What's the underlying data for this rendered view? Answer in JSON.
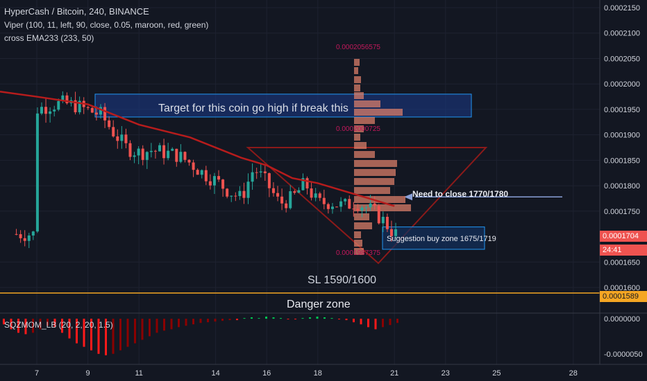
{
  "header": {
    "symbol_line": "HyperCash / Bitcoin, 240, BINANCE",
    "indicator_1": "Viper (100, 11, left, 90, close, 0.05, maroon, red, green)",
    "indicator_2": "cross EMA233 (233, 50)"
  },
  "annotations": {
    "target": "Target for this coin go high if break this",
    "need_close": "Need to close 1770/1780",
    "buy_zone": "Suggestion buy zone 1675/1719",
    "sl": "SL 1590/1600",
    "danger": "Danger zone"
  },
  "price_axis": {
    "ticks": [
      "0.0002150",
      "0.0002100",
      "0.0002050",
      "0.0002000",
      "0.0001950",
      "0.0001900",
      "0.0001850",
      "0.0001800",
      "0.0001750",
      "0.0001650",
      "0.0001600"
    ],
    "current_price": "0.0001704",
    "countdown": "24:41",
    "danger_price": "0.0001589"
  },
  "time_axis": {
    "ticks": [
      "7",
      "9",
      "11",
      "14",
      "16",
      "18",
      "21",
      "23",
      "25",
      "28"
    ]
  },
  "volume_profile_labels": [
    "0.0002056575",
    "0.0002000725",
    "0.0001987375"
  ],
  "indicator_panel": {
    "title": "SQZMOM_LB (20, 2, 20, 1.5)",
    "ticks": [
      "0.0000000",
      "-0.0000050"
    ]
  },
  "colors": {
    "bg": "#131722",
    "up": "#26a69a",
    "down": "#ef5350",
    "ema": "#b71c1c",
    "box_fill": "#1c3a8a",
    "box_border": "#2196f3",
    "danger_line": "#f5a623",
    "axis_text": "#d1d4dc"
  },
  "chart_data": {
    "type": "candlestick",
    "title": "HyperCash / Bitcoin, 240, BINANCE",
    "x_ticks": [
      "7",
      "9",
      "11",
      "14",
      "16",
      "18",
      "21",
      "23",
      "25",
      "28"
    ],
    "y_ticks": [
      0.000215,
      0.00021,
      0.000205,
      0.0002,
      0.000195,
      0.00019,
      0.000185,
      0.00018,
      0.000175,
      0.000165,
      0.00016
    ],
    "ylim": [
      0.0001585,
      0.0002165
    ],
    "current_price": 0.0001704,
    "danger_level": 0.0001589,
    "target_zone": [
      0.0001935,
      0.000198
    ],
    "buy_zone": [
      0.0001675,
      0.0001719
    ],
    "need_close_level": 0.0001778,
    "close_trend": [
      [
        7,
        0.000195
      ],
      [
        7.5,
        0.0001958
      ],
      [
        8,
        0.0001962
      ],
      [
        8.5,
        0.0001958
      ],
      [
        9,
        0.0001948
      ],
      [
        9.5,
        0.000194
      ],
      [
        10,
        0.0001905
      ],
      [
        10.5,
        0.0001875
      ],
      [
        11,
        0.0001865
      ],
      [
        11.5,
        0.000187
      ],
      [
        12,
        0.0001865
      ],
      [
        12.5,
        0.000186
      ],
      [
        13,
        0.0001845
      ],
      [
        13.5,
        0.0001825
      ],
      [
        14,
        0.000181
      ],
      [
        14.5,
        0.000179
      ],
      [
        15,
        0.0001775
      ],
      [
        15.5,
        0.0001835
      ],
      [
        16,
        0.0001805
      ],
      [
        16.5,
        0.0001765
      ],
      [
        17,
        0.0001775
      ],
      [
        17.5,
        0.0001805
      ],
      [
        18,
        0.0001765
      ],
      [
        18.5,
        0.0001768
      ],
      [
        19,
        0.000176
      ],
      [
        19.5,
        0.0001768
      ],
      [
        20,
        0.0001755
      ],
      [
        20.5,
        0.0001735
      ],
      [
        21,
        0.0001705
      ]
    ],
    "ema233": [
      [
        6,
        0.0001985
      ],
      [
        7,
        0.0001975
      ],
      [
        9,
        0.000196
      ],
      [
        11,
        0.000192
      ],
      [
        13,
        0.0001895
      ],
      [
        15,
        0.0001855
      ],
      [
        16,
        0.000184
      ],
      [
        17,
        0.0001815
      ],
      [
        18,
        0.0001805
      ],
      [
        19,
        0.000179
      ],
      [
        20,
        0.0001775
      ],
      [
        21,
        0.000176
      ]
    ],
    "sqzmom_histogram": {
      "ylim": [
        -6.5e-06,
        8e-07
      ],
      "values": [
        -8e-07,
        -1.5e-06,
        -2e-06,
        -2.2e-06,
        -2e-06,
        -1.5e-06,
        -1e-06,
        -1.2e-06,
        -2e-06,
        -2.8e-06,
        -3.5e-06,
        -4e-06,
        -4.5e-06,
        -5e-06,
        -5.2e-06,
        -5e-06,
        -4.5e-06,
        -4e-06,
        -3.5e-06,
        -3e-06,
        -2.5e-06,
        -2e-06,
        -1.7e-06,
        -1.5e-06,
        -1.2e-06,
        -1e-06,
        -8e-07,
        -6e-07,
        -5e-07,
        -4e-07,
        -3e-07,
        -2e-07,
        -2e-07,
        1e-07,
        2e-07,
        1e-07,
        3e-07,
        2e-07,
        1e-07,
        -1e-07,
        -1e-07,
        1e-07,
        2e-07,
        3e-07,
        2e-07,
        1e-07,
        -1e-07,
        -2e-07,
        -5e-07,
        -8e-07,
        -1.2e-06,
        -1.5e-06,
        -1.2e-06,
        -9e-07,
        -6e-07
      ]
    }
  }
}
